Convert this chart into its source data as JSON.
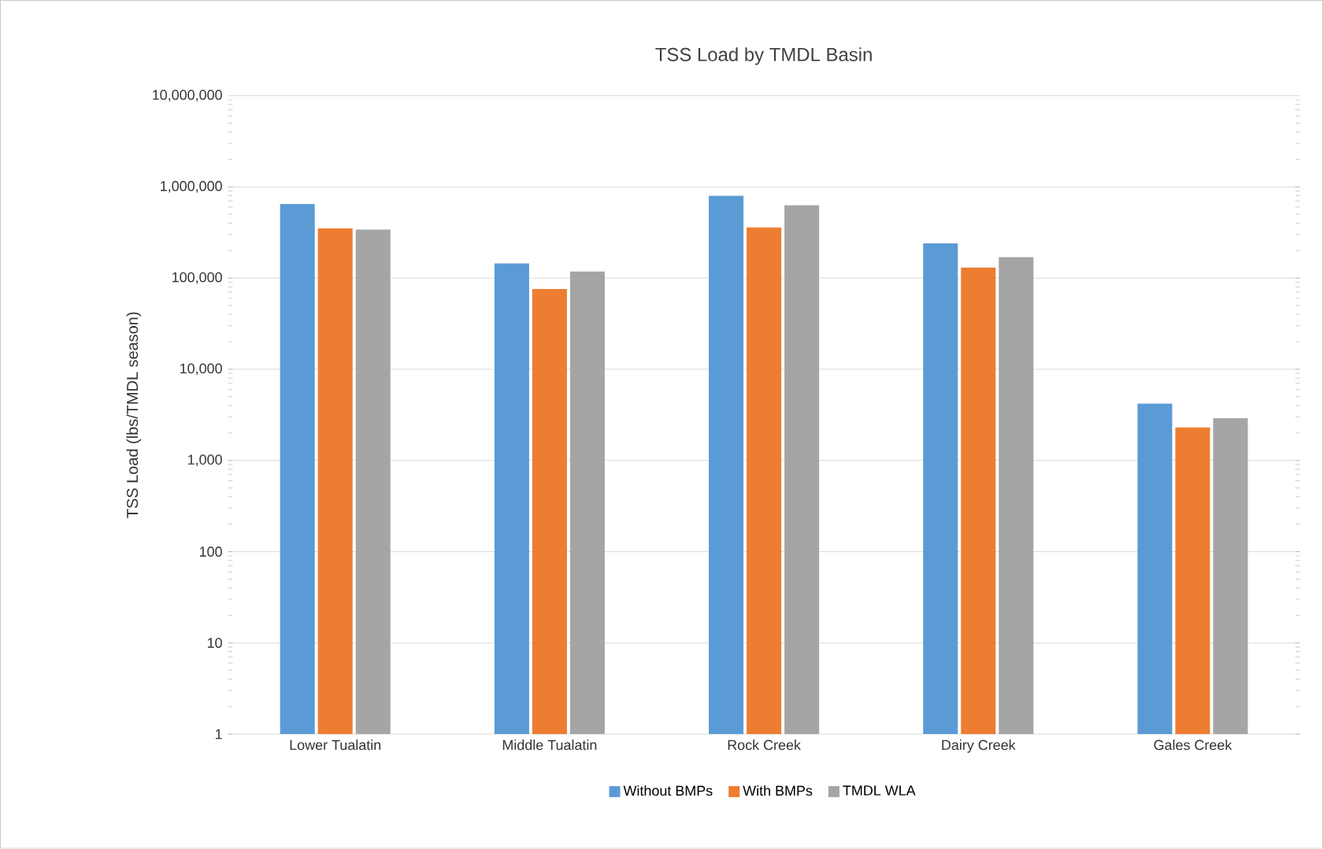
{
  "chart_data": {
    "type": "bar",
    "title": "TSS Load by TMDL Basin",
    "ylabel": "TSS Load (lbs/TMDL season)",
    "categories": [
      "Lower Tualatin",
      "Middle Tualatin",
      "Rock Creek",
      "Dairy Creek",
      "Gales Creek"
    ],
    "series": [
      {
        "name": "Without BMPs",
        "color": "#5b9bd5",
        "values": [
          650000,
          145000,
          800000,
          240000,
          4200
        ]
      },
      {
        "name": "With BMPs",
        "color": "#ed7d31",
        "values": [
          350000,
          76000,
          360000,
          130000,
          2300
        ]
      },
      {
        "name": "TMDL WLA",
        "color": "#a5a5a5",
        "values": [
          340000,
          118000,
          630000,
          170000,
          2900
        ]
      }
    ],
    "log": true,
    "ylim": [
      1,
      10000000
    ],
    "yticks": [
      1,
      10,
      100,
      {
        "value": 1000,
        "label": "1,000"
      },
      {
        "value": 10000,
        "label": "10,000"
      },
      {
        "value": 100000,
        "label": "100,000"
      },
      {
        "value": 1000000,
        "label": "1,000,000"
      },
      {
        "value": 10000000,
        "label": "10,000,000"
      }
    ],
    "grid": "y",
    "legend": "bottom"
  }
}
